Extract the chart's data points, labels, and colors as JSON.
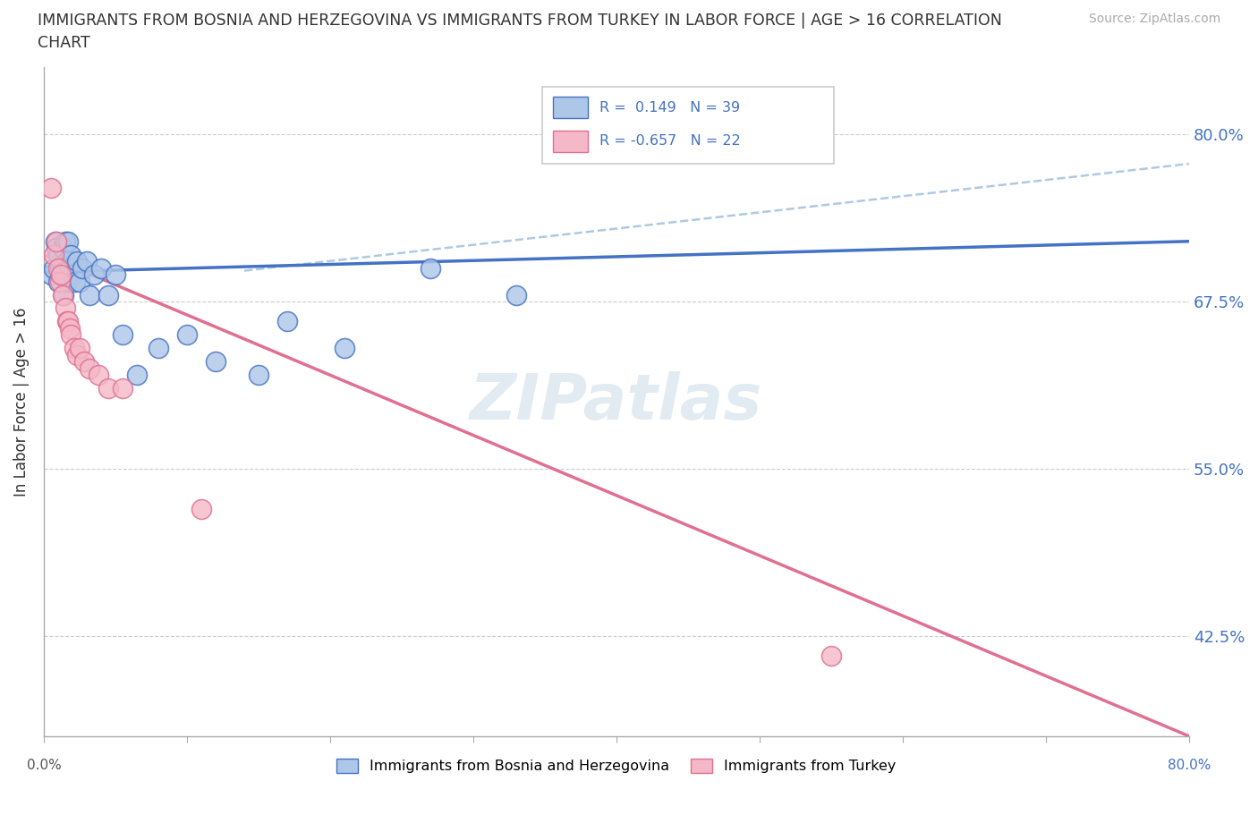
{
  "title_line1": "IMMIGRANTS FROM BOSNIA AND HERZEGOVINA VS IMMIGRANTS FROM TURKEY IN LABOR FORCE | AGE > 16 CORRELATION",
  "title_line2": "CHART",
  "source": "Source: ZipAtlas.com",
  "ylabel": "In Labor Force | Age > 16",
  "ytick_labels": [
    "80.0%",
    "67.5%",
    "55.0%",
    "42.5%"
  ],
  "ytick_values": [
    0.8,
    0.675,
    0.55,
    0.425
  ],
  "xlim": [
    0.0,
    0.8
  ],
  "ylim": [
    0.35,
    0.85
  ],
  "r_bosnia": 0.149,
  "n_bosnia": 39,
  "r_turkey": -0.657,
  "n_turkey": 22,
  "bosnia_color": "#aec6e8",
  "turkey_color": "#f4b8c8",
  "line_bosnia_color": "#4472c4",
  "line_turkey_color": "#e07090",
  "dash_line_color": "#a8c4e0",
  "legend_label_bosnia": "Immigrants from Bosnia and Herzegovina",
  "legend_label_turkey": "Immigrants from Turkey",
  "watermark": "ZIPatlas",
  "bosnia_x": [
    0.005,
    0.007,
    0.008,
    0.009,
    0.01,
    0.01,
    0.011,
    0.012,
    0.013,
    0.013,
    0.014,
    0.015,
    0.015,
    0.016,
    0.016,
    0.017,
    0.018,
    0.019,
    0.02,
    0.022,
    0.023,
    0.025,
    0.027,
    0.03,
    0.032,
    0.035,
    0.04,
    0.045,
    0.05,
    0.055,
    0.065,
    0.08,
    0.1,
    0.12,
    0.15,
    0.17,
    0.21,
    0.27,
    0.33
  ],
  "bosnia_y": [
    0.695,
    0.7,
    0.72,
    0.715,
    0.69,
    0.71,
    0.7,
    0.695,
    0.715,
    0.7,
    0.68,
    0.72,
    0.695,
    0.705,
    0.69,
    0.72,
    0.7,
    0.71,
    0.695,
    0.69,
    0.705,
    0.69,
    0.7,
    0.705,
    0.68,
    0.695,
    0.7,
    0.68,
    0.695,
    0.65,
    0.62,
    0.64,
    0.65,
    0.63,
    0.62,
    0.66,
    0.64,
    0.7,
    0.68
  ],
  "turkey_x": [
    0.005,
    0.007,
    0.009,
    0.01,
    0.011,
    0.012,
    0.013,
    0.015,
    0.016,
    0.017,
    0.018,
    0.019,
    0.021,
    0.023,
    0.025,
    0.028,
    0.032,
    0.038,
    0.045,
    0.055,
    0.11,
    0.55
  ],
  "turkey_y": [
    0.76,
    0.71,
    0.72,
    0.7,
    0.69,
    0.695,
    0.68,
    0.67,
    0.66,
    0.66,
    0.655,
    0.65,
    0.64,
    0.635,
    0.64,
    0.63,
    0.625,
    0.62,
    0.61,
    0.61,
    0.52,
    0.41
  ],
  "bos_line_x": [
    0.0,
    0.8
  ],
  "bos_line_y": [
    0.697,
    0.72
  ],
  "tur_line_x": [
    0.0,
    0.8
  ],
  "tur_line_y": [
    0.71,
    0.35
  ],
  "dash_line_x": [
    0.14,
    0.8
  ],
  "dash_line_y": [
    0.698,
    0.778
  ]
}
